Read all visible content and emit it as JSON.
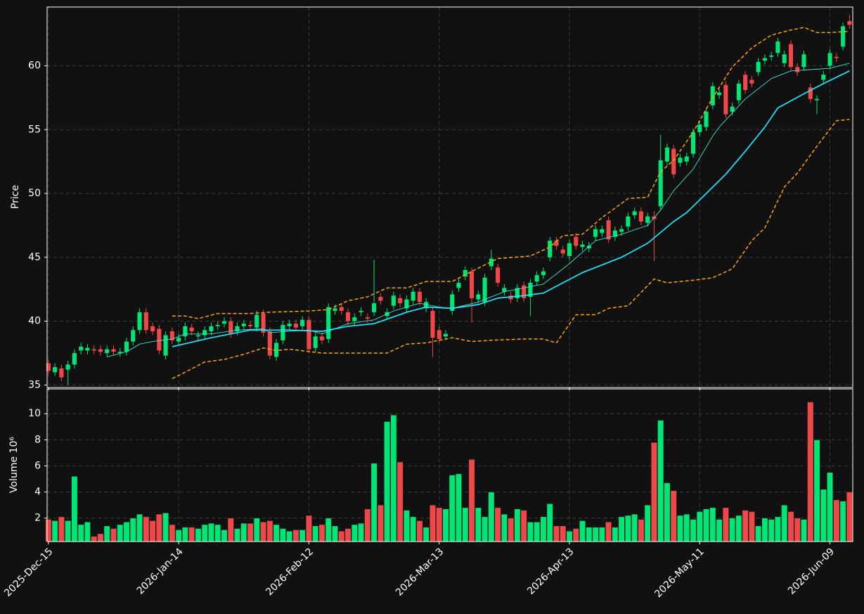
{
  "chart_data": [
    {
      "type": "candlestick",
      "ylabel": "Price",
      "xlim": [
        -0.2,
        123.5
      ],
      "xticks": [
        0,
        20,
        40,
        60,
        80,
        100,
        120
      ],
      "ylim": [
        34.8,
        64.6
      ],
      "yticks": [
        35,
        40,
        45,
        50,
        55,
        60
      ],
      "grid": true,
      "up_color": "#00e676",
      "down_color": "#f04848",
      "open": [
        36.7,
        36.0,
        36.3,
        36.2,
        36.6,
        37.7,
        37.7,
        37.8,
        37.8,
        37.5,
        37.8,
        37.5,
        37.6,
        38.4,
        39.3,
        40.7,
        39.6,
        39.4,
        37.3,
        39.2,
        38.4,
        38.8,
        39.5,
        38.8,
        38.9,
        39.2,
        39.6,
        39.8,
        40.0,
        39.2,
        39.6,
        39.7,
        39.5,
        40.6,
        39.2,
        37.2,
        38.5,
        39.6,
        39.8,
        39.6,
        40.1,
        37.9,
        38.8,
        38.6,
        40.8,
        41.1,
        40.7,
        40.0,
        40.7,
        40.3,
        40.7,
        41.9,
        40.4,
        41.2,
        41.8,
        41.0,
        41.6,
        42.3,
        41.0,
        40.8,
        39.3,
        38.8,
        40.8,
        42.6,
        43.5,
        43.9,
        41.7,
        41.5,
        44.3,
        44.2,
        42.3,
        42.0,
        41.8,
        42.8,
        41.9,
        43.1,
        43.6,
        45.0,
        46.3,
        45.6,
        45.1,
        46.6,
        45.8,
        45.7,
        46.6,
        46.9,
        47.9,
        46.6,
        47.0,
        47.4,
        48.3,
        48.6,
        47.7,
        48.2,
        49.0,
        52.5,
        53.5,
        52.4,
        52.5,
        53.1,
        54.8,
        55.2,
        56.9,
        57.7,
        58.5,
        56.4,
        57.3,
        59.3,
        58.9,
        59.5,
        60.4,
        60.7,
        61.0,
        60.2,
        61.7,
        59.9,
        59.9,
        58.3,
        57.3,
        58.9,
        60.0,
        60.7,
        61.5,
        63.5
      ],
      "high": [
        37.0,
        36.7,
        36.6,
        36.9,
        37.8,
        38.3,
        38.2,
        38.1,
        38.1,
        38.1,
        38.1,
        37.9,
        38.7,
        39.6,
        41.0,
        41.0,
        39.9,
        39.7,
        39.2,
        39.5,
        39.0,
        39.9,
        39.8,
        39.2,
        39.6,
        39.9,
        40.0,
        40.3,
        40.3,
        39.9,
        40.1,
        40.0,
        40.8,
        40.9,
        39.5,
        38.6,
        40.0,
        40.1,
        40.1,
        40.4,
        40.4,
        39.1,
        39.1,
        41.4,
        41.3,
        41.4,
        41.0,
        40.6,
        41.1,
        40.6,
        44.8,
        42.2,
        41.0,
        42.3,
        42.1,
        42.0,
        42.6,
        42.6,
        41.8,
        41.1,
        39.6,
        39.3,
        42.4,
        43.3,
        44.3,
        44.2,
        42.4,
        43.7,
        45.6,
        44.5,
        42.9,
        42.3,
        42.9,
        43.1,
        43.3,
        43.9,
        44.2,
        46.6,
        46.6,
        45.9,
        46.4,
        46.9,
        46.3,
        46.2,
        47.5,
        47.5,
        48.2,
        47.4,
        47.5,
        48.5,
        48.9,
        48.9,
        48.5,
        48.6,
        54.6,
        53.9,
        53.8,
        53.1,
        53.2,
        55.1,
        55.7,
        56.7,
        58.7,
        58.2,
        58.8,
        57.1,
        58.9,
        59.6,
        59.2,
        60.6,
        60.9,
        61.1,
        62.2,
        61.2,
        62.0,
        60.2,
        61.2,
        58.6,
        57.7,
        59.6,
        61.3,
        61.0,
        63.4,
        64.0
      ],
      "low": [
        35.8,
        35.7,
        35.3,
        35.0,
        36.3,
        37.4,
        37.4,
        37.4,
        37.3,
        37.2,
        37.3,
        37.2,
        37.3,
        38.1,
        39.0,
        39.0,
        38.9,
        37.4,
        37.0,
        38.2,
        38.1,
        38.5,
        38.9,
        38.5,
        38.6,
        38.9,
        39.3,
        39.5,
        38.7,
        38.9,
        39.3,
        39.3,
        39.2,
        38.8,
        37.0,
        36.9,
        38.2,
        39.3,
        39.2,
        39.3,
        37.5,
        37.6,
        38.2,
        38.3,
        40.5,
        40.5,
        39.7,
        39.7,
        40.4,
        39.9,
        40.4,
        41.3,
        40.1,
        40.9,
        41.1,
        40.7,
        41.3,
        41.2,
        40.7,
        37.2,
        38.3,
        38.5,
        40.5,
        42.3,
        43.2,
        39.9,
        41.4,
        41.2,
        44.0,
        42.7,
        42.0,
        41.4,
        41.5,
        41.5,
        40.4,
        42.8,
        43.3,
        44.7,
        45.6,
        45.0,
        44.8,
        45.6,
        45.5,
        45.4,
        46.3,
        46.6,
        46.1,
        46.3,
        46.7,
        47.1,
        48.0,
        47.5,
        47.4,
        44.7,
        48.7,
        52.2,
        51.2,
        52.1,
        52.2,
        52.8,
        54.5,
        54.9,
        56.6,
        57.4,
        55.9,
        56.1,
        57.0,
        57.8,
        58.3,
        59.2,
        60.1,
        60.4,
        60.7,
        59.9,
        59.6,
        59.2,
        59.6,
        57.1,
        56.2,
        58.6,
        59.7,
        60.3,
        61.2,
        62.9
      ],
      "close": [
        36.1,
        36.4,
        35.6,
        36.6,
        37.5,
        38.0,
        37.9,
        37.7,
        37.6,
        37.8,
        37.6,
        37.6,
        38.4,
        39.3,
        40.7,
        39.3,
        39.2,
        37.7,
        38.9,
        38.5,
        38.7,
        39.6,
        39.2,
        38.9,
        39.3,
        39.6,
        39.7,
        40.0,
        39.0,
        39.6,
        39.8,
        39.6,
        40.5,
        39.1,
        37.3,
        38.3,
        39.7,
        39.8,
        39.5,
        40.1,
        37.8,
        38.8,
        38.5,
        41.1,
        41.0,
        40.8,
        40.0,
        40.3,
        40.8,
        40.2,
        41.4,
        41.6,
        40.7,
        42.0,
        41.4,
        41.7,
        42.3,
        41.5,
        41.5,
        38.7,
        38.6,
        39.0,
        42.1,
        43.0,
        44.0,
        41.8,
        42.1,
        43.4,
        44.9,
        43.0,
        42.6,
        41.7,
        42.6,
        41.8,
        43.0,
        43.6,
        43.9,
        46.3,
        45.9,
        45.3,
        46.1,
        45.9,
        46.0,
        45.9,
        47.2,
        47.2,
        46.4,
        47.1,
        47.2,
        48.2,
        48.6,
        47.8,
        48.2,
        48.0,
        52.6,
        53.6,
        51.5,
        52.8,
        52.9,
        54.8,
        55.4,
        56.4,
        58.4,
        57.9,
        56.2,
        56.8,
        58.6,
        58.1,
        58.6,
        60.3,
        60.6,
        60.8,
        61.9,
        60.9,
        59.9,
        59.5,
        60.9,
        57.4,
        57.4,
        59.3,
        61.0,
        60.6,
        63.1,
        63.2
      ],
      "overlays": [
        {
          "color": "#40e0d0",
          "style": "thin",
          "x": [
            9,
            12,
            14,
            16,
            19,
            21,
            25,
            29,
            33,
            34,
            37,
            40,
            42,
            46,
            50,
            53,
            57,
            60,
            62,
            66,
            70,
            73,
            76,
            80,
            84,
            88,
            92,
            94,
            96,
            99,
            102,
            103,
            107,
            111,
            114,
            117,
            120,
            123
          ],
          "values": [
            37.2,
            37.6,
            38.2,
            38.4,
            38.6,
            39.0,
            39.0,
            39.3,
            39.4,
            39.1,
            39.2,
            39.3,
            39.0,
            39.8,
            40.1,
            40.8,
            41.4,
            41.1,
            41.0,
            41.5,
            42.3,
            42.6,
            42.9,
            44.5,
            46.3,
            46.8,
            47.5,
            48.7,
            50.2,
            51.9,
            54.5,
            55.2,
            57.4,
            59.0,
            59.6,
            59.7,
            59.8,
            60.2
          ]
        },
        {
          "color": "#18e8ff",
          "style": "thick",
          "x": [
            19,
            25,
            31,
            37,
            42,
            46,
            50,
            55,
            58,
            62,
            66,
            69,
            73,
            76,
            79,
            82,
            84,
            88,
            92,
            96,
            98,
            102,
            104,
            107,
            110,
            112,
            116,
            119,
            123
          ],
          "values": [
            38.0,
            38.7,
            39.3,
            39.3,
            39.2,
            39.6,
            39.8,
            40.7,
            41.1,
            41.0,
            41.3,
            41.8,
            42.0,
            42.2,
            43.0,
            43.8,
            44.2,
            45.0,
            46.1,
            47.8,
            48.5,
            50.5,
            51.5,
            53.3,
            55.2,
            56.7,
            57.8,
            58.6,
            59.6
          ]
        },
        {
          "color": "#ffa500",
          "style": "dashed",
          "x": [
            19,
            21,
            23,
            26,
            31,
            34,
            40,
            43,
            46,
            49,
            52,
            55,
            58,
            62,
            65,
            69,
            74,
            77,
            79,
            82,
            85,
            89,
            92,
            94,
            96,
            99,
            102,
            105,
            108,
            111,
            114,
            116,
            118,
            120,
            123
          ],
          "values": [
            40.4,
            40.4,
            40.2,
            40.6,
            40.6,
            40.7,
            40.8,
            40.9,
            41.6,
            41.9,
            42.6,
            42.6,
            43.1,
            43.1,
            43.9,
            44.9,
            45.1,
            45.8,
            46.7,
            46.8,
            48.1,
            49.6,
            49.7,
            51.7,
            52.6,
            54.8,
            57.5,
            59.9,
            61.4,
            62.4,
            62.8,
            63.0,
            62.6,
            62.6,
            62.7
          ]
        },
        {
          "color": "#ffa500",
          "style": "dashed",
          "x": [
            19,
            21,
            24,
            27,
            30,
            33,
            35,
            37,
            42,
            47,
            52,
            55,
            58,
            62,
            65,
            68,
            73,
            76,
            78,
            81,
            84,
            86,
            89,
            93,
            95,
            99,
            102,
            105,
            108,
            110,
            113,
            115,
            118,
            121,
            123
          ],
          "values": [
            35.5,
            36.0,
            36.8,
            37.0,
            37.4,
            37.9,
            37.7,
            37.8,
            37.5,
            37.5,
            37.5,
            38.2,
            38.3,
            38.7,
            38.4,
            38.5,
            38.6,
            38.6,
            38.3,
            40.5,
            40.5,
            41.0,
            41.2,
            43.3,
            43.0,
            43.2,
            43.4,
            44.1,
            46.3,
            47.3,
            50.5,
            51.6,
            53.7,
            55.7,
            55.8
          ]
        }
      ]
    },
    {
      "type": "bar",
      "ylabel": "Volume  10⁶",
      "xlim": [
        -0.2,
        123.5
      ],
      "xticks": [
        {
          "value": 0,
          "label": "2025-Dec-15"
        },
        {
          "value": 20,
          "label": "2026-Jan-14"
        },
        {
          "value": 40,
          "label": "2026-Feb-12"
        },
        {
          "value": 60,
          "label": "2026-Mar-13"
        },
        {
          "value": 80,
          "label": "2026-Apr-13"
        },
        {
          "value": 100,
          "label": "2026-May-11"
        },
        {
          "value": 120,
          "label": "2026-Jun-09"
        }
      ],
      "ylim": [
        0.2,
        11.9
      ],
      "yticks": [
        2,
        4,
        6,
        8,
        10
      ],
      "grid": true,
      "values": [
        1.9,
        1.8,
        2.1,
        1.8,
        5.2,
        1.5,
        1.7,
        0.6,
        0.8,
        1.4,
        1.2,
        1.5,
        1.7,
        2.0,
        2.3,
        2.1,
        1.8,
        2.3,
        2.4,
        1.5,
        1.1,
        1.3,
        1.3,
        1.2,
        1.5,
        1.6,
        1.5,
        1.1,
        2.0,
        1.2,
        1.6,
        1.6,
        2.0,
        1.7,
        1.8,
        1.5,
        1.2,
        1.0,
        1.1,
        1.1,
        2.2,
        1.4,
        1.5,
        2.0,
        1.4,
        1.0,
        1.2,
        1.5,
        1.6,
        2.7,
        6.2,
        3.0,
        9.4,
        9.9,
        6.3,
        2.6,
        2.1,
        1.8,
        1.3,
        3.0,
        2.8,
        2.7,
        5.3,
        5.4,
        2.8,
        6.5,
        2.8,
        2.1,
        4.0,
        2.8,
        2.3,
        2.0,
        2.7,
        2.6,
        1.7,
        1.7,
        2.1,
        3.1,
        1.4,
        1.4,
        1.0,
        1.2,
        1.8,
        1.3,
        1.3,
        1.3,
        1.7,
        1.3,
        2.1,
        2.2,
        2.3,
        1.9,
        3.0,
        7.8,
        9.5,
        4.7,
        4.1,
        2.2,
        2.3,
        1.9,
        2.5,
        2.7,
        2.8,
        1.9,
        2.8,
        2.0,
        2.2,
        2.6,
        2.5,
        1.4,
        2.0,
        1.9,
        2.1,
        3.0,
        2.5,
        2.0,
        1.9,
        10.9,
        8.0,
        4.2,
        5.5,
        3.4,
        3.3,
        4.0
      ]
    }
  ]
}
